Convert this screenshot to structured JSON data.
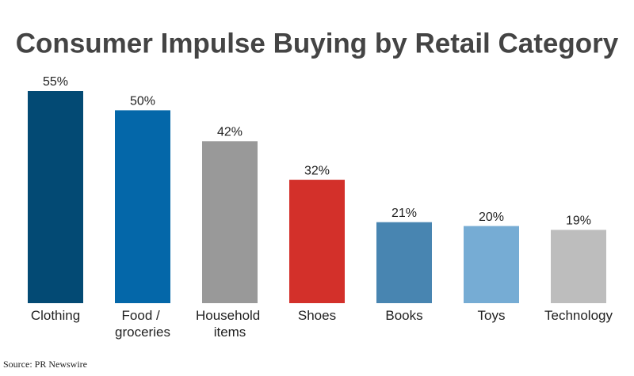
{
  "chart_data": {
    "type": "bar",
    "title": "Consumer Impulse Buying by Retail Category",
    "categories": [
      "Clothing",
      "Food / groceries",
      "Household items",
      "Shoes",
      "Books",
      "Toys",
      "Technology"
    ],
    "values": [
      55,
      50,
      42,
      32,
      21,
      20,
      19
    ],
    "value_labels": [
      "55%",
      "50%",
      "42%",
      "32%",
      "21%",
      "20%",
      "19%"
    ],
    "colors": [
      "#034a74",
      "#0467a9",
      "#999999",
      "#d3302a",
      "#4885b1",
      "#76acd4",
      "#bdbdbd"
    ],
    "source": "Source: PR Newswire"
  }
}
